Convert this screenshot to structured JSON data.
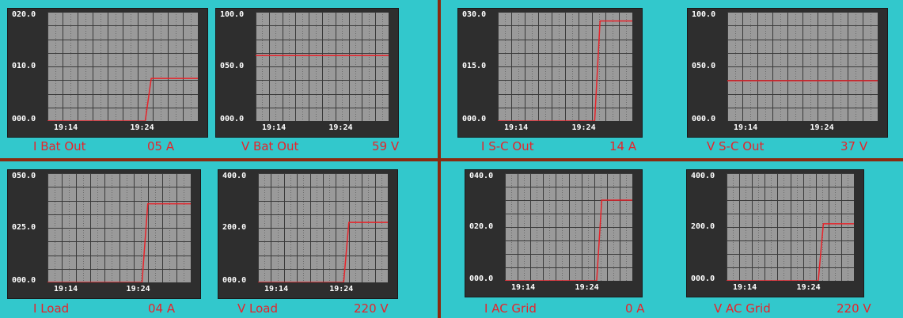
{
  "colors": {
    "background": "#32c8cc",
    "divider": "#8a2a10",
    "frame": "#2e2e2e",
    "plot": "#9a9a9a",
    "grid": "#3a3a3a",
    "trace": "#e8232a",
    "caption": "#e8232a"
  },
  "chart_data": [
    {
      "type": "line",
      "caption": "I Bat Out",
      "readout": "05 A",
      "yticks": [
        "020.0",
        "010.0",
        "000.0"
      ],
      "xticks": [
        "19:14",
        "19:24"
      ],
      "ylim": [
        0,
        20
      ],
      "step_at": 0.65,
      "before": 0,
      "after": 7.8
    },
    {
      "type": "line",
      "caption": "V Bat Out",
      "readout": "59 V",
      "yticks": [
        "100.0",
        "050.0",
        "000.0"
      ],
      "xticks": [
        "19:14",
        "19:24"
      ],
      "ylim": [
        0,
        100
      ],
      "step_at": null,
      "before": 60,
      "after": 60
    },
    {
      "type": "line",
      "caption": "I S-C Out",
      "readout": "14 A",
      "yticks": [
        "030.0",
        "015.0",
        "000.0"
      ],
      "xticks": [
        "19:14",
        "19:24"
      ],
      "ylim": [
        0,
        30
      ],
      "step_at": 0.72,
      "before": 0,
      "after": 27.5
    },
    {
      "type": "line",
      "caption": "V S-C Out",
      "readout": "37 V",
      "yticks": [
        "100.0",
        "050.0",
        "000.0"
      ],
      "xticks": [
        "19:14",
        "19:24"
      ],
      "ylim": [
        0,
        100
      ],
      "step_at": null,
      "before": 37,
      "after": 37
    },
    {
      "type": "line",
      "caption": "I Load",
      "readout": "04 A",
      "yticks": [
        "050.0",
        "025.0",
        "000.0"
      ],
      "xticks": [
        "19:14",
        "19:24"
      ],
      "ylim": [
        0,
        50
      ],
      "step_at": 0.66,
      "before": 0,
      "after": 36
    },
    {
      "type": "line",
      "caption": "V Load",
      "readout": "220 V",
      "yticks": [
        "400.0",
        "200.0",
        "000.0"
      ],
      "xticks": [
        "19:14",
        "19:24"
      ],
      "ylim": [
        0,
        400
      ],
      "step_at": 0.66,
      "before": 0,
      "after": 220
    },
    {
      "type": "line",
      "caption": "I AC Grid",
      "readout": "0 A",
      "yticks": [
        "040.0",
        "020.0",
        "000.0"
      ],
      "xticks": [
        "19:14",
        "19:24"
      ],
      "ylim": [
        0,
        40
      ],
      "step_at": 0.72,
      "before": 0,
      "after": 30
    },
    {
      "type": "line",
      "caption": "V AC Grid",
      "readout": "220 V",
      "yticks": [
        "400.0",
        "200.0",
        "000.0"
      ],
      "xticks": [
        "19:14",
        "19:24"
      ],
      "ylim": [
        0,
        400
      ],
      "step_at": 0.72,
      "before": 0,
      "after": 212
    }
  ]
}
